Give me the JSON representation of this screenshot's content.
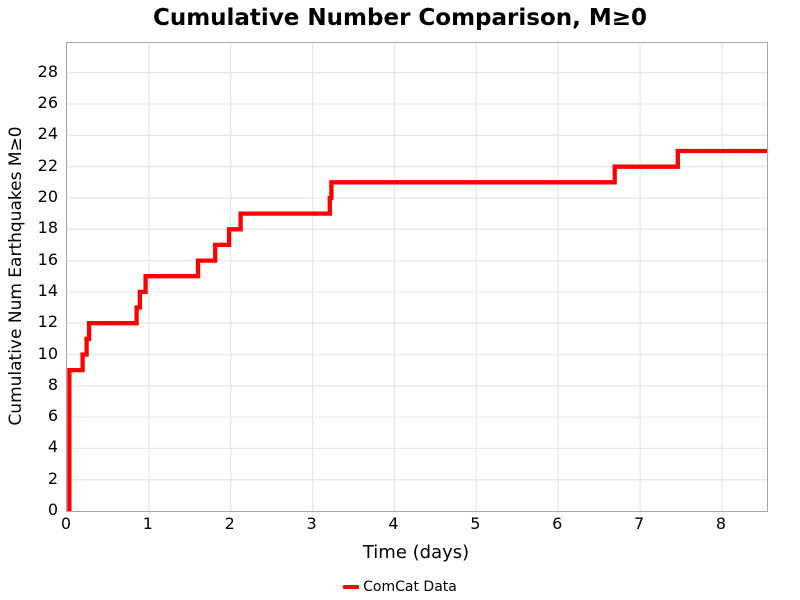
{
  "title": "Cumulative Number Comparison, M≥0",
  "axes": {
    "xlabel": "Time (days)",
    "ylabel": "Cumulative Num Earthquakes M≥0"
  },
  "legend": {
    "items": [
      {
        "label": "ComCat Data",
        "color": "#ff0000"
      }
    ]
  },
  "colors": {
    "series": "#ff0000",
    "grid": "#e8e8e8",
    "panel_border": "#a6a6a6",
    "background": "#ffffff",
    "text": "#000000"
  },
  "chart_data": {
    "type": "line",
    "subtype": "step-cumulative",
    "title": "Cumulative Number Comparison, M≥0",
    "xlabel": "Time (days)",
    "ylabel": "Cumulative Num Earthquakes M≥0",
    "xlim": [
      0,
      8.55
    ],
    "ylim": [
      0,
      29.9
    ],
    "x_ticks": [
      0,
      1,
      2,
      3,
      4,
      5,
      6,
      7,
      8
    ],
    "y_ticks": [
      0,
      2,
      4,
      6,
      8,
      10,
      12,
      14,
      16,
      18,
      20,
      22,
      24,
      26,
      28
    ],
    "grid": true,
    "legend_position": "bottom-center",
    "series": [
      {
        "name": "ComCat Data",
        "color": "#ff0000",
        "line_width": 4.3,
        "start": [
          0,
          0
        ],
        "steps": [
          [
            0.0,
            9
          ],
          [
            0.19,
            10
          ],
          [
            0.24,
            11
          ],
          [
            0.27,
            12
          ],
          [
            0.85,
            13
          ],
          [
            0.89,
            14
          ],
          [
            0.96,
            15
          ],
          [
            1.6,
            16
          ],
          [
            1.81,
            17
          ],
          [
            1.98,
            18
          ],
          [
            2.12,
            19
          ],
          [
            3.21,
            20
          ],
          [
            3.23,
            21
          ],
          [
            6.69,
            22
          ],
          [
            7.46,
            23
          ]
        ],
        "end_x": 8.55
      }
    ]
  }
}
